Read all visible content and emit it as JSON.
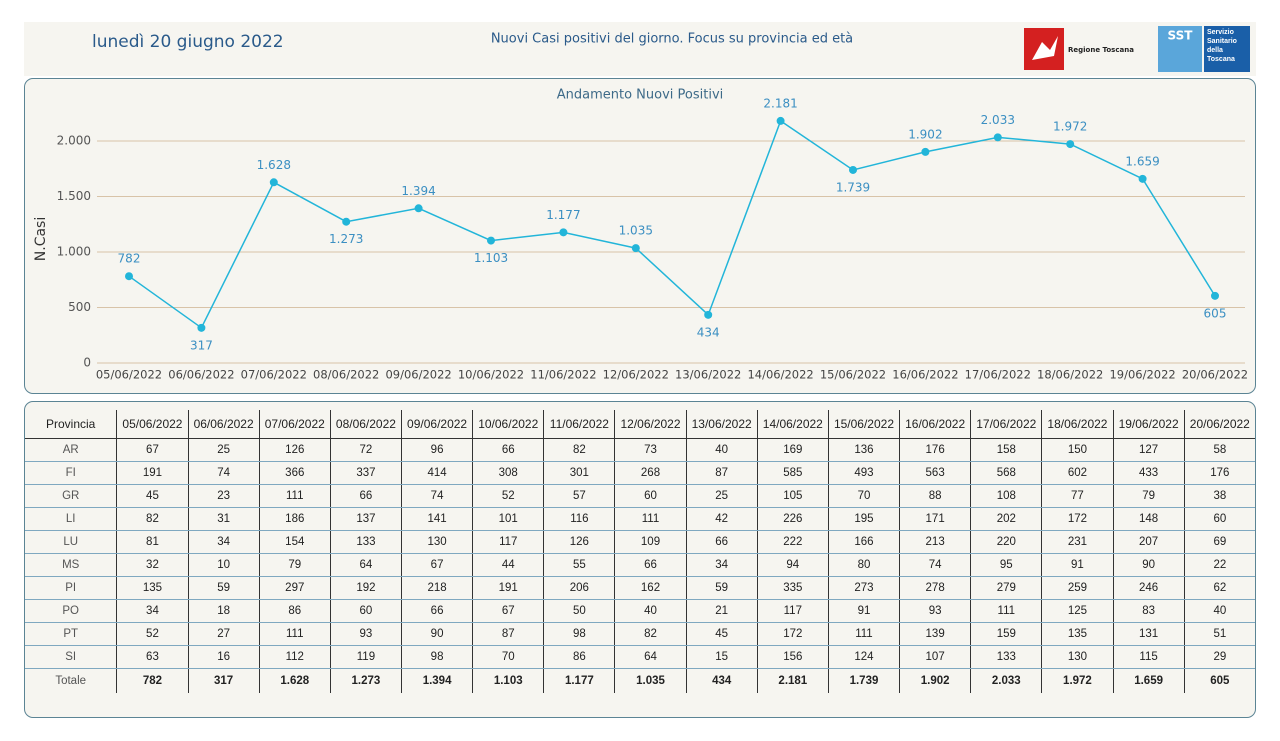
{
  "header": {
    "date": "lunedì 20 giugno 2022",
    "title": "Nuovi Casi positivi del giorno. Focus su provincia ed età",
    "logo_left": "Regione Toscana",
    "logo_right_mark": "SST",
    "logo_right_text": "Servizio Sanitario della Toscana"
  },
  "chart_data": {
    "type": "line",
    "title": "Andamento Nuovi Positivi",
    "y_label": "N.Casi",
    "categories": [
      "05/06/2022",
      "06/06/2022",
      "07/06/2022",
      "08/06/2022",
      "09/06/2022",
      "10/06/2022",
      "11/06/2022",
      "12/06/2022",
      "13/06/2022",
      "14/06/2022",
      "15/06/2022",
      "16/06/2022",
      "17/06/2022",
      "18/06/2022",
      "19/06/2022",
      "20/06/2022"
    ],
    "values": [
      782,
      317,
      1628,
      1273,
      1394,
      1103,
      1177,
      1035,
      434,
      2181,
      1739,
      1902,
      2033,
      1972,
      1659,
      605
    ],
    "value_labels": [
      "782",
      "317",
      "1.628",
      "1.273",
      "1.394",
      "1.103",
      "1.177",
      "1.035",
      "434",
      "2.181",
      "1.739",
      "1.902",
      "2.033",
      "1.972",
      "1.659",
      "605"
    ],
    "color": "#22b5d9",
    "label_color": "#3b8fc2",
    "ylim": [
      0,
      2300
    ],
    "yticks": [
      0,
      500,
      {
        "value": 1000,
        "label": "1.000"
      },
      {
        "value": 1500,
        "label": "1.500"
      },
      {
        "value": 2000,
        "label": "2.000"
      }
    ],
    "grid": true
  },
  "table": {
    "header": [
      "Provincia",
      "05/06/2022",
      "06/06/2022",
      "07/06/2022",
      "08/06/2022",
      "09/06/2022",
      "10/06/2022",
      "11/06/2022",
      "12/06/2022",
      "13/06/2022",
      "14/06/2022",
      "15/06/2022",
      "16/06/2022",
      "17/06/2022",
      "18/06/2022",
      "19/06/2022",
      "20/06/2022"
    ],
    "rows": [
      [
        "AR",
        "67",
        "25",
        "126",
        "72",
        "96",
        "66",
        "82",
        "73",
        "40",
        "169",
        "136",
        "176",
        "158",
        "150",
        "127",
        "58"
      ],
      [
        "FI",
        "191",
        "74",
        "366",
        "337",
        "414",
        "308",
        "301",
        "268",
        "87",
        "585",
        "493",
        "563",
        "568",
        "602",
        "433",
        "176"
      ],
      [
        "GR",
        "45",
        "23",
        "111",
        "66",
        "74",
        "52",
        "57",
        "60",
        "25",
        "105",
        "70",
        "88",
        "108",
        "77",
        "79",
        "38"
      ],
      [
        "LI",
        "82",
        "31",
        "186",
        "137",
        "141",
        "101",
        "116",
        "111",
        "42",
        "226",
        "195",
        "171",
        "202",
        "172",
        "148",
        "60"
      ],
      [
        "LU",
        "81",
        "34",
        "154",
        "133",
        "130",
        "117",
        "126",
        "109",
        "66",
        "222",
        "166",
        "213",
        "220",
        "231",
        "207",
        "69"
      ],
      [
        "MS",
        "32",
        "10",
        "79",
        "64",
        "67",
        "44",
        "55",
        "66",
        "34",
        "94",
        "80",
        "74",
        "95",
        "91",
        "90",
        "22"
      ],
      [
        "PI",
        "135",
        "59",
        "297",
        "192",
        "218",
        "191",
        "206",
        "162",
        "59",
        "335",
        "273",
        "278",
        "279",
        "259",
        "246",
        "62"
      ],
      [
        "PO",
        "34",
        "18",
        "86",
        "60",
        "66",
        "67",
        "50",
        "40",
        "21",
        "117",
        "91",
        "93",
        "111",
        "125",
        "83",
        "40"
      ],
      [
        "PT",
        "52",
        "27",
        "111",
        "93",
        "90",
        "87",
        "98",
        "82",
        "45",
        "172",
        "111",
        "139",
        "159",
        "135",
        "131",
        "51"
      ],
      [
        "SI",
        "63",
        "16",
        "112",
        "119",
        "98",
        "70",
        "86",
        "64",
        "15",
        "156",
        "124",
        "107",
        "133",
        "130",
        "115",
        "29"
      ],
      [
        "Totale",
        "782",
        "317",
        "1.628",
        "1.273",
        "1.394",
        "1.103",
        "1.177",
        "1.035",
        "434",
        "2.181",
        "1.739",
        "1.902",
        "2.033",
        "1.972",
        "1.659",
        "605"
      ]
    ]
  }
}
